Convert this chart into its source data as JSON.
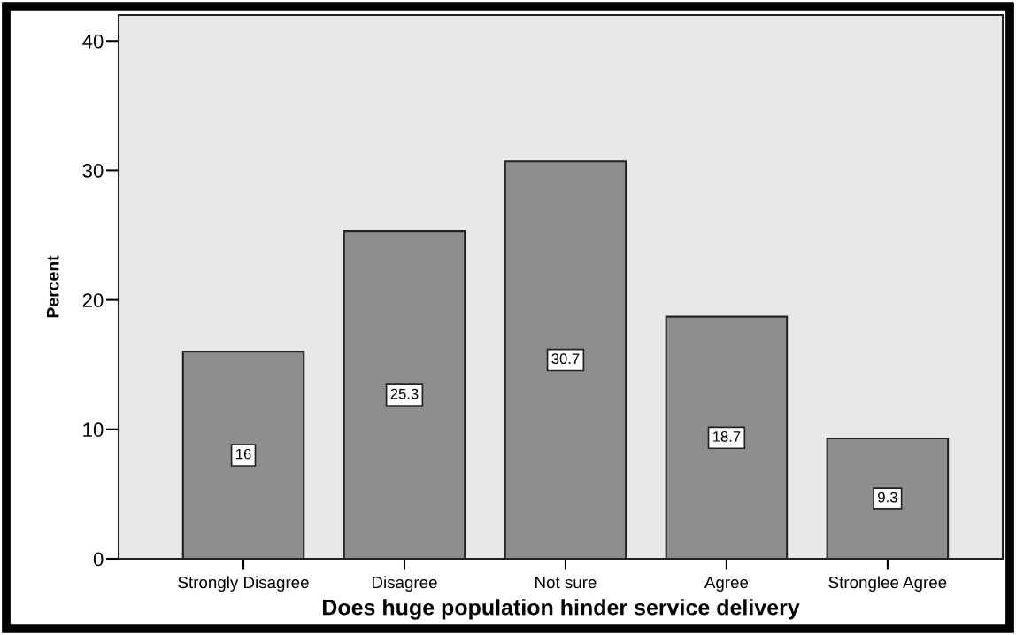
{
  "chart_data": {
    "type": "bar",
    "xlabel": "Does huge population hinder service delivery",
    "ylabel": "Percent",
    "categories": [
      "Strongly Disagree",
      "Disagree",
      "Not sure",
      "Agree",
      "Stronglee Agree"
    ],
    "values": [
      16,
      25.3,
      30.7,
      18.7,
      9.3
    ],
    "color": "#8e8e8e",
    "ylim": [
      0,
      42
    ],
    "yticks": [
      0,
      10,
      20,
      30,
      40
    ],
    "data_labels": true
  }
}
